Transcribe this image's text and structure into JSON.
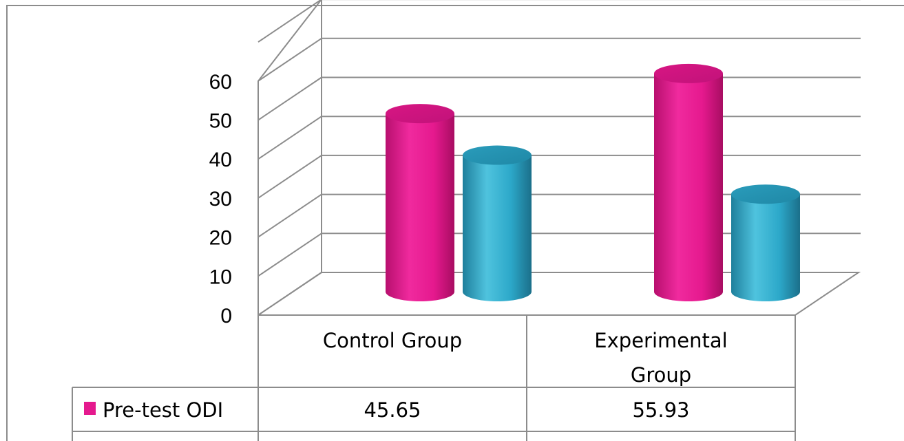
{
  "chart_data": {
    "type": "bar",
    "style": "3d-cylinder-with-data-table",
    "categories": [
      "Control Group",
      "Experimental Group"
    ],
    "series": [
      {
        "name": "Pre-test ODI",
        "values": [
          45.65,
          55.93
        ],
        "color": "#E5198E"
      },
      {
        "name": "",
        "values": [
          35.0,
          25.0
        ],
        "color": "#2CA8C9"
      }
    ],
    "ylim": [
      0,
      60
    ],
    "yticks": [
      0,
      10,
      20,
      30,
      40,
      50,
      60
    ],
    "grid": true,
    "legend": "data-table-left",
    "title": "",
    "xlabel": "",
    "ylabel": ""
  }
}
